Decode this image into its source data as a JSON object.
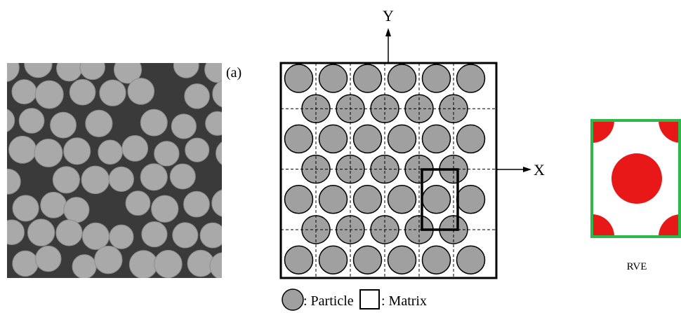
{
  "panel_label": "(a)",
  "axes": {
    "y": "Y",
    "x": "X"
  },
  "legend": {
    "particle": ": Particle",
    "matrix": ": Matrix"
  },
  "rve_label": "RVE"
}
